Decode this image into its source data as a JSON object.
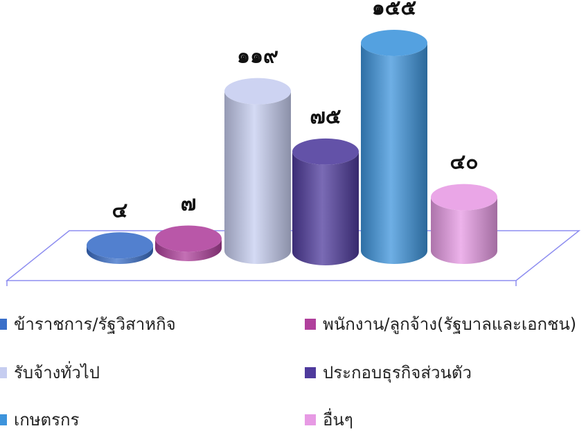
{
  "chart_data": {
    "type": "bar",
    "style": "3d-cylinder",
    "categories": [
      "ข้าราชการ/รัฐวิสาหกิจ",
      "พนักงาน/ลูกจ้าง(รัฐบาลและเอกชน)",
      "รับจ้างทั่วไป",
      "ประกอบธุรกิจส่วนตัว",
      "เกษตรกร",
      "อื่นๆ"
    ],
    "values": [
      4,
      7,
      119,
      75,
      155,
      40
    ],
    "data_labels": [
      "๔",
      "๗",
      "๑๑๙",
      "๗๕",
      "๑๕๕",
      "๔๐"
    ],
    "colors": [
      "#3a6fc9",
      "#b0409c",
      "#c6cdf0",
      "#4e3a9c",
      "#3d94dc",
      "#e79ae4"
    ],
    "ylim": [
      0,
      155
    ],
    "grid": false,
    "legend_position": "bottom",
    "legend_columns": 2
  }
}
